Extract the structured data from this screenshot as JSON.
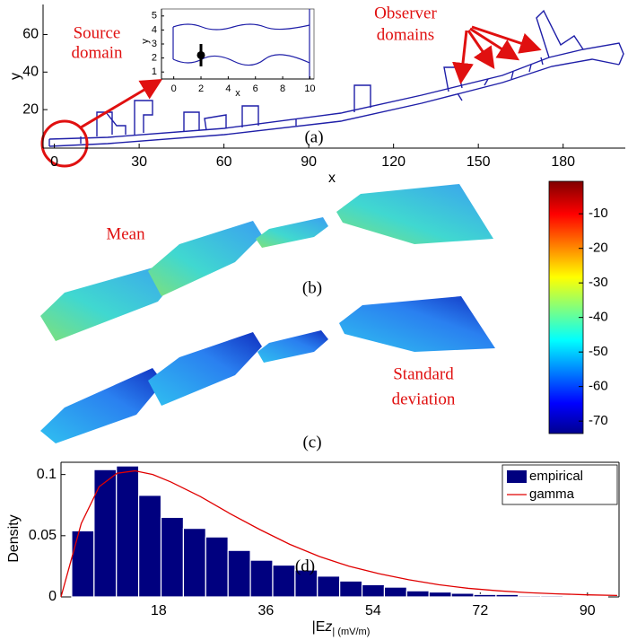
{
  "chart_data": [
    {
      "type": "map",
      "panel_label": "(a)",
      "xlabel": "x",
      "ylabel": "y",
      "xlim": [
        -4,
        202
      ],
      "ylim": [
        -0.5,
        76
      ],
      "xticks": [
        0,
        30,
        60,
        90,
        120,
        150,
        180
      ],
      "yticks": [
        20,
        40,
        60
      ],
      "color": "#1f1fa8",
      "annotations": [
        [
          "Source",
          "domain"
        ],
        [
          "Observer",
          "domains"
        ]
      ]
    },
    {
      "type": "scatter",
      "xlabel": "x",
      "ylabel": "y",
      "xlim": [
        -0.9,
        10.3
      ],
      "ylim": [
        0.5,
        5.5
      ],
      "xticks": [
        0,
        2,
        4,
        6,
        8,
        10
      ],
      "yticks": [
        1,
        2,
        3,
        4,
        5
      ],
      "x": [
        2
      ],
      "values": [
        2.2
      ],
      "errors": [
        0.8
      ],
      "color": "#000000"
    },
    {
      "type": "heatmap",
      "panel_labels": [
        "(b)",
        "(c)"
      ],
      "annotations": [
        [
          "Mean"
        ],
        [
          "Standard",
          "deviation"
        ]
      ],
      "clim": [
        -73.6,
        -0.6
      ],
      "cticks": [
        -10,
        -20,
        -30,
        -40,
        -50,
        -60,
        -70
      ],
      "colormap": "jet"
    },
    {
      "type": "histogram",
      "panel_label": "(d)",
      "xlabel": [
        "|E",
        "z",
        "| (mV/m)"
      ],
      "ylabel": "Density",
      "xlim": [
        1.6,
        95.3
      ],
      "ylim": [
        0,
        0.11
      ],
      "xticks": [
        18,
        36,
        54,
        72,
        90
      ],
      "yticks": [
        0,
        0.05,
        0.1
      ],
      "bins": [
        3.4,
        7.15,
        10.9,
        14.65,
        18.4,
        22.15,
        25.9,
        29.65,
        33.4,
        37.15,
        40.9,
        44.65,
        48.4,
        52.15,
        55.9,
        59.65,
        63.4,
        67.15,
        70.9,
        74.65,
        78.4,
        82.15,
        85.9,
        89.65,
        93.4
      ],
      "series": [
        {
          "name": "empirical",
          "color": "#00007f",
          "values": [
            0.054,
            0.104,
            0.107,
            0.083,
            0.065,
            0.056,
            0.049,
            0.038,
            0.03,
            0.026,
            0.022,
            0.017,
            0.013,
            0.01,
            0.008,
            0.005,
            0.004,
            0.003,
            0.002,
            0.002,
            0.001,
            0.001,
            0.0005,
            0.0005
          ]
        },
        {
          "name": "gamma",
          "color": "#e00000",
          "type": "line",
          "x": [
            1.6,
            5,
            8,
            11,
            14,
            17,
            20,
            25,
            30,
            35,
            40,
            45,
            50,
            55,
            60,
            65,
            70,
            75,
            80,
            85,
            90,
            95
          ],
          "values": [
            0,
            0.06,
            0.09,
            0.101,
            0.103,
            0.1,
            0.094,
            0.082,
            0.068,
            0.055,
            0.043,
            0.033,
            0.025,
            0.019,
            0.014,
            0.01,
            0.007,
            0.005,
            0.0035,
            0.0025,
            0.0017,
            0.0012
          ]
        }
      ],
      "legend": "northeast"
    }
  ]
}
